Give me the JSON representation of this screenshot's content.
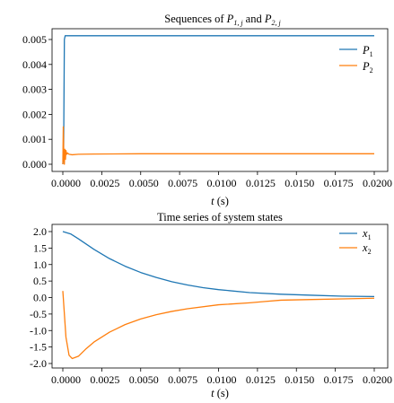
{
  "chart_data": [
    {
      "type": "line",
      "title_parts": {
        "a": "Sequences of ",
        "p1": "P",
        "s1": "1, j",
        "and": " and ",
        "p2": "P",
        "s2": "2, j"
      },
      "xlabel_var": "t",
      "xlabel_unit": " (s)",
      "xlim": [
        0,
        0.02
      ],
      "ylim": [
        0,
        0.005
      ],
      "xticks": [
        "0.0000",
        "0.0025",
        "0.0050",
        "0.0075",
        "0.0100",
        "0.0125",
        "0.0150",
        "0.0175",
        "0.0200"
      ],
      "yticks": [
        "0.000",
        "0.001",
        "0.002",
        "0.003",
        "0.004",
        "0.005"
      ],
      "legend_position": "top-right",
      "series": [
        {
          "name": "P",
          "sub": "1",
          "color": "#1f77b4",
          "x": [
            0,
            5e-05,
            0.0001,
            0.00015,
            0.0002,
            0.0003,
            0.0005,
            0.001,
            0.005,
            0.01,
            0.015,
            0.02
          ],
          "y": [
            0.0,
            0.0004,
            0.005,
            0.00515,
            0.00515,
            0.00515,
            0.00515,
            0.00515,
            0.00515,
            0.00515,
            0.00515,
            0.00515
          ]
        },
        {
          "name": "P",
          "sub": "2",
          "color": "#ff7f0e",
          "x": [
            0,
            3e-05,
            6e-05,
            0.0001,
            0.00013,
            0.00017,
            0.0002,
            0.00025,
            0.0003,
            0.0004,
            0.0006,
            0.001,
            0.002,
            0.005,
            0.01,
            0.015,
            0.02
          ],
          "y": [
            0.0,
            0.0015,
            0.0003,
            0.0,
            0.0006,
            0.0002,
            0.00055,
            0.0004,
            0.00045,
            0.0004,
            0.00038,
            0.0004,
            0.00041,
            0.00042,
            0.00042,
            0.00042,
            0.00042
          ]
        }
      ]
    },
    {
      "type": "line",
      "title": "Time series of system states",
      "xlabel_var": "t",
      "xlabel_unit": " (s)",
      "xlim": [
        0,
        0.02
      ],
      "ylim": [
        -2.0,
        2.0
      ],
      "xticks": [
        "0.0000",
        "0.0025",
        "0.0050",
        "0.0075",
        "0.0100",
        "0.0125",
        "0.0150",
        "0.0175",
        "0.0200"
      ],
      "yticks": [
        "2.0",
        "1.5",
        "1.0",
        "0.5",
        "0.0",
        "-0.5",
        "-1.0",
        "-1.5",
        "-2.0"
      ],
      "legend_position": "top-right",
      "series": [
        {
          "name": "x",
          "sub": "1",
          "color": "#1f77b4",
          "x": [
            0,
            0.0005,
            0.001,
            0.0015,
            0.002,
            0.003,
            0.004,
            0.005,
            0.006,
            0.007,
            0.008,
            0.009,
            0.01,
            0.012,
            0.014,
            0.016,
            0.018,
            0.02
          ],
          "y": [
            2.0,
            1.93,
            1.78,
            1.62,
            1.46,
            1.18,
            0.95,
            0.76,
            0.61,
            0.48,
            0.38,
            0.3,
            0.24,
            0.15,
            0.1,
            0.07,
            0.04,
            0.03
          ]
        },
        {
          "name": "x",
          "sub": "2",
          "color": "#ff7f0e",
          "x": [
            0,
            0.0002,
            0.0004,
            0.0006,
            0.001,
            0.0015,
            0.002,
            0.003,
            0.004,
            0.005,
            0.006,
            0.007,
            0.008,
            0.01,
            0.012,
            0.013,
            0.014,
            0.016,
            0.018,
            0.02
          ],
          "y": [
            0.2,
            -1.2,
            -1.75,
            -1.85,
            -1.78,
            -1.55,
            -1.35,
            -1.05,
            -0.82,
            -0.65,
            -0.52,
            -0.42,
            -0.34,
            -0.22,
            -0.16,
            -0.12,
            -0.08,
            -0.06,
            -0.04,
            -0.02
          ]
        }
      ]
    }
  ]
}
